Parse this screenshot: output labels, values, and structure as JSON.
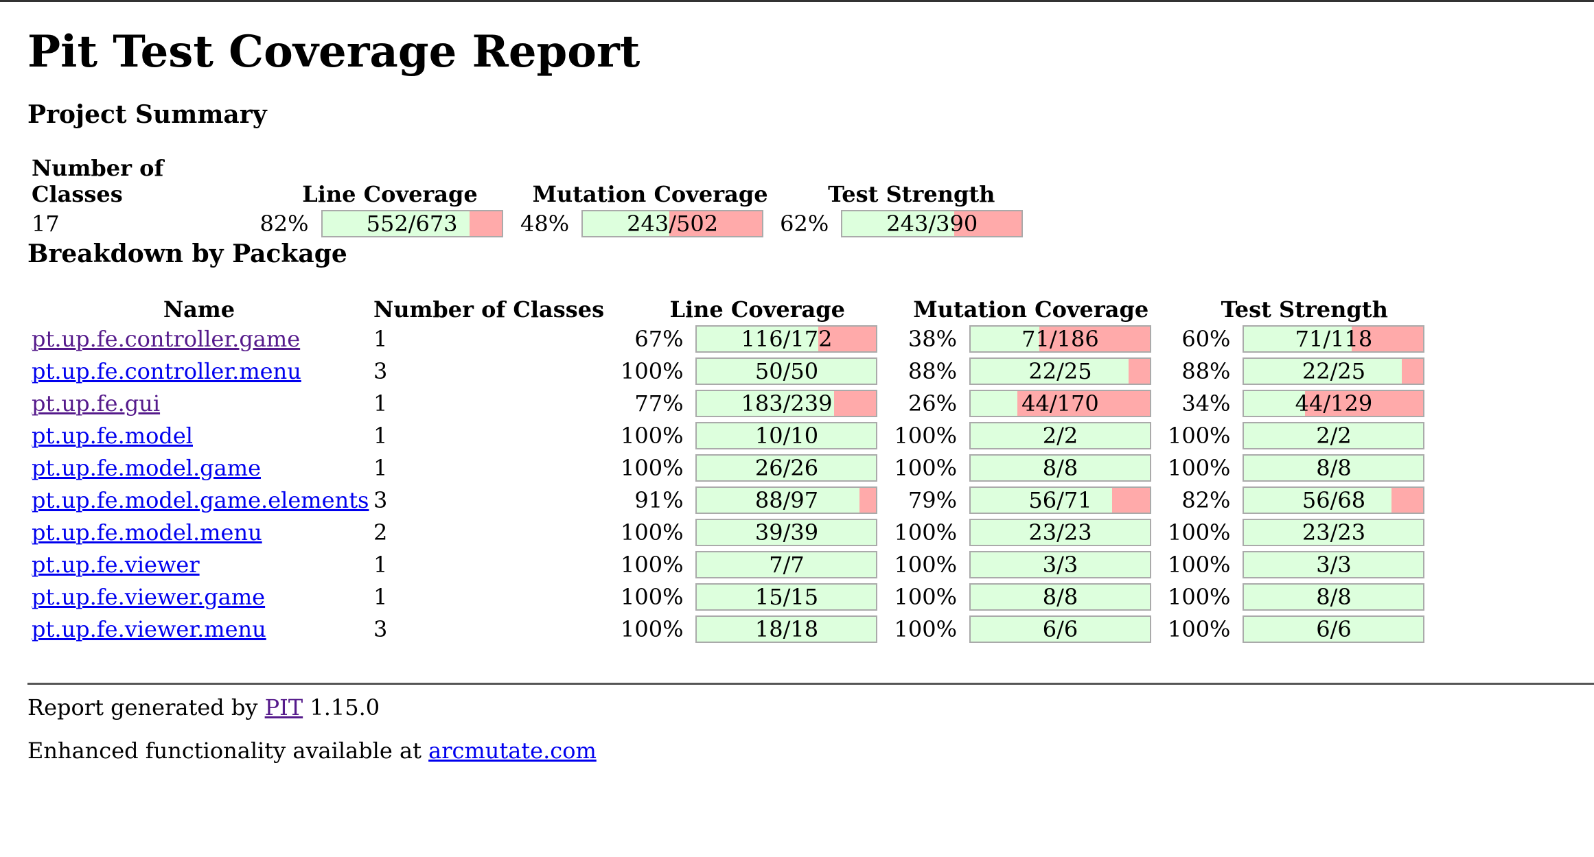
{
  "title": "Pit Test Coverage Report",
  "summary": {
    "heading": "Project Summary",
    "headers": {
      "classes": "Number of Classes",
      "line": "Line Coverage",
      "mutation": "Mutation Coverage",
      "strength": "Test Strength"
    },
    "classes": "17",
    "line": {
      "pct": "82%",
      "text": "552/673",
      "covered": 552,
      "total": 673
    },
    "mutation": {
      "pct": "48%",
      "text": "243/502",
      "covered": 243,
      "total": 502
    },
    "strength": {
      "pct": "62%",
      "text": "243/390",
      "covered": 243,
      "total": 390
    }
  },
  "breakdown": {
    "heading": "Breakdown by Package",
    "headers": {
      "name": "Name",
      "classes": "Number of Classes",
      "line": "Line Coverage",
      "mutation": "Mutation Coverage",
      "strength": "Test Strength"
    },
    "packages": [
      {
        "name": "pt.up.fe.controller.game",
        "visited": true,
        "classes": "1",
        "line": {
          "pct": "67%",
          "text": "116/172",
          "covered": 116,
          "total": 172
        },
        "mutation": {
          "pct": "38%",
          "text": "71/186",
          "covered": 71,
          "total": 186
        },
        "strength": {
          "pct": "60%",
          "text": "71/118",
          "covered": 71,
          "total": 118
        }
      },
      {
        "name": "pt.up.fe.controller.menu",
        "visited": false,
        "classes": "3",
        "line": {
          "pct": "100%",
          "text": "50/50",
          "covered": 50,
          "total": 50
        },
        "mutation": {
          "pct": "88%",
          "text": "22/25",
          "covered": 22,
          "total": 25
        },
        "strength": {
          "pct": "88%",
          "text": "22/25",
          "covered": 22,
          "total": 25
        }
      },
      {
        "name": "pt.up.fe.gui",
        "visited": true,
        "classes": "1",
        "line": {
          "pct": "77%",
          "text": "183/239",
          "covered": 183,
          "total": 239
        },
        "mutation": {
          "pct": "26%",
          "text": "44/170",
          "covered": 44,
          "total": 170
        },
        "strength": {
          "pct": "34%",
          "text": "44/129",
          "covered": 44,
          "total": 129
        }
      },
      {
        "name": "pt.up.fe.model",
        "visited": false,
        "classes": "1",
        "line": {
          "pct": "100%",
          "text": "10/10",
          "covered": 10,
          "total": 10
        },
        "mutation": {
          "pct": "100%",
          "text": "2/2",
          "covered": 2,
          "total": 2
        },
        "strength": {
          "pct": "100%",
          "text": "2/2",
          "covered": 2,
          "total": 2
        }
      },
      {
        "name": "pt.up.fe.model.game",
        "visited": false,
        "classes": "1",
        "line": {
          "pct": "100%",
          "text": "26/26",
          "covered": 26,
          "total": 26
        },
        "mutation": {
          "pct": "100%",
          "text": "8/8",
          "covered": 8,
          "total": 8
        },
        "strength": {
          "pct": "100%",
          "text": "8/8",
          "covered": 8,
          "total": 8
        }
      },
      {
        "name": "pt.up.fe.model.game.elements",
        "visited": false,
        "classes": "3",
        "line": {
          "pct": "91%",
          "text": "88/97",
          "covered": 88,
          "total": 97
        },
        "mutation": {
          "pct": "79%",
          "text": "56/71",
          "covered": 56,
          "total": 71
        },
        "strength": {
          "pct": "82%",
          "text": "56/68",
          "covered": 56,
          "total": 68
        }
      },
      {
        "name": "pt.up.fe.model.menu",
        "visited": false,
        "classes": "2",
        "line": {
          "pct": "100%",
          "text": "39/39",
          "covered": 39,
          "total": 39
        },
        "mutation": {
          "pct": "100%",
          "text": "23/23",
          "covered": 23,
          "total": 23
        },
        "strength": {
          "pct": "100%",
          "text": "23/23",
          "covered": 23,
          "total": 23
        }
      },
      {
        "name": "pt.up.fe.viewer",
        "visited": false,
        "classes": "1",
        "line": {
          "pct": "100%",
          "text": "7/7",
          "covered": 7,
          "total": 7
        },
        "mutation": {
          "pct": "100%",
          "text": "3/3",
          "covered": 3,
          "total": 3
        },
        "strength": {
          "pct": "100%",
          "text": "3/3",
          "covered": 3,
          "total": 3
        }
      },
      {
        "name": "pt.up.fe.viewer.game",
        "visited": false,
        "classes": "1",
        "line": {
          "pct": "100%",
          "text": "15/15",
          "covered": 15,
          "total": 15
        },
        "mutation": {
          "pct": "100%",
          "text": "8/8",
          "covered": 8,
          "total": 8
        },
        "strength": {
          "pct": "100%",
          "text": "8/8",
          "covered": 8,
          "total": 8
        }
      },
      {
        "name": "pt.up.fe.viewer.menu",
        "visited": false,
        "classes": "3",
        "line": {
          "pct": "100%",
          "text": "18/18",
          "covered": 18,
          "total": 18
        },
        "mutation": {
          "pct": "100%",
          "text": "6/6",
          "covered": 6,
          "total": 6
        },
        "strength": {
          "pct": "100%",
          "text": "6/6",
          "covered": 6,
          "total": 6
        }
      }
    ]
  },
  "footer": {
    "generated_prefix": "Report generated by ",
    "pit_link": "PIT",
    "version": " 1.15.0",
    "enhanced_prefix": "Enhanced functionality available at ",
    "arcmutate_link": "arcmutate.com"
  },
  "colors": {
    "covered": "#ddffdd",
    "uncovered": "#ffaaaa",
    "link": "#0000ee",
    "visited": "#551a8b"
  }
}
